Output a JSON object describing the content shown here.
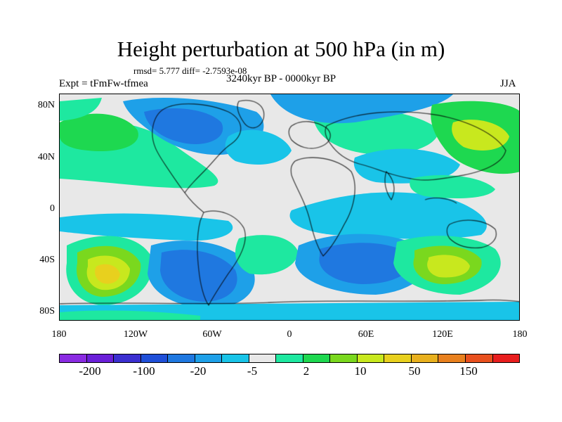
{
  "title": "Height perturbation at 500 hPa (in m)",
  "stats": "rmsd= 5.777 diff= -2.7593e-08",
  "experiment": "Expt = tFmFw-tfmea",
  "period": "3240kyr BP - 0000kyr BP",
  "season": "JJA",
  "axes": {
    "y_ticks": [
      "80N",
      "40N",
      "0",
      "40S",
      "80S"
    ],
    "x_ticks": [
      "180",
      "120W",
      "60W",
      "0",
      "60E",
      "120E",
      "180"
    ]
  },
  "colorbar": {
    "colors": [
      "#8a2be2",
      "#6a1fd8",
      "#3b2fd0",
      "#1f4fd8",
      "#1f78e0",
      "#1ea0e8",
      "#19c4e8",
      "#e8e8e8",
      "#1ee8a0",
      "#1ed850",
      "#7ad81e",
      "#c8e81e",
      "#e8d01e",
      "#e8b01e",
      "#e8801e",
      "#e8501e",
      "#e81e1e"
    ],
    "labels": [
      "-200",
      "-100",
      "-20",
      "-5",
      "2",
      "10",
      "50",
      "150"
    ]
  },
  "colors": {
    "neutral": "#e8e8e8",
    "blue_dark": "#1f78e0",
    "blue": "#1ea0e8",
    "cyan": "#19c4e8",
    "green_light": "#1ee8a0",
    "green": "#1ed850",
    "lime": "#7ad81e",
    "yellow": "#c8e81e",
    "orange": "#e8d01e"
  }
}
